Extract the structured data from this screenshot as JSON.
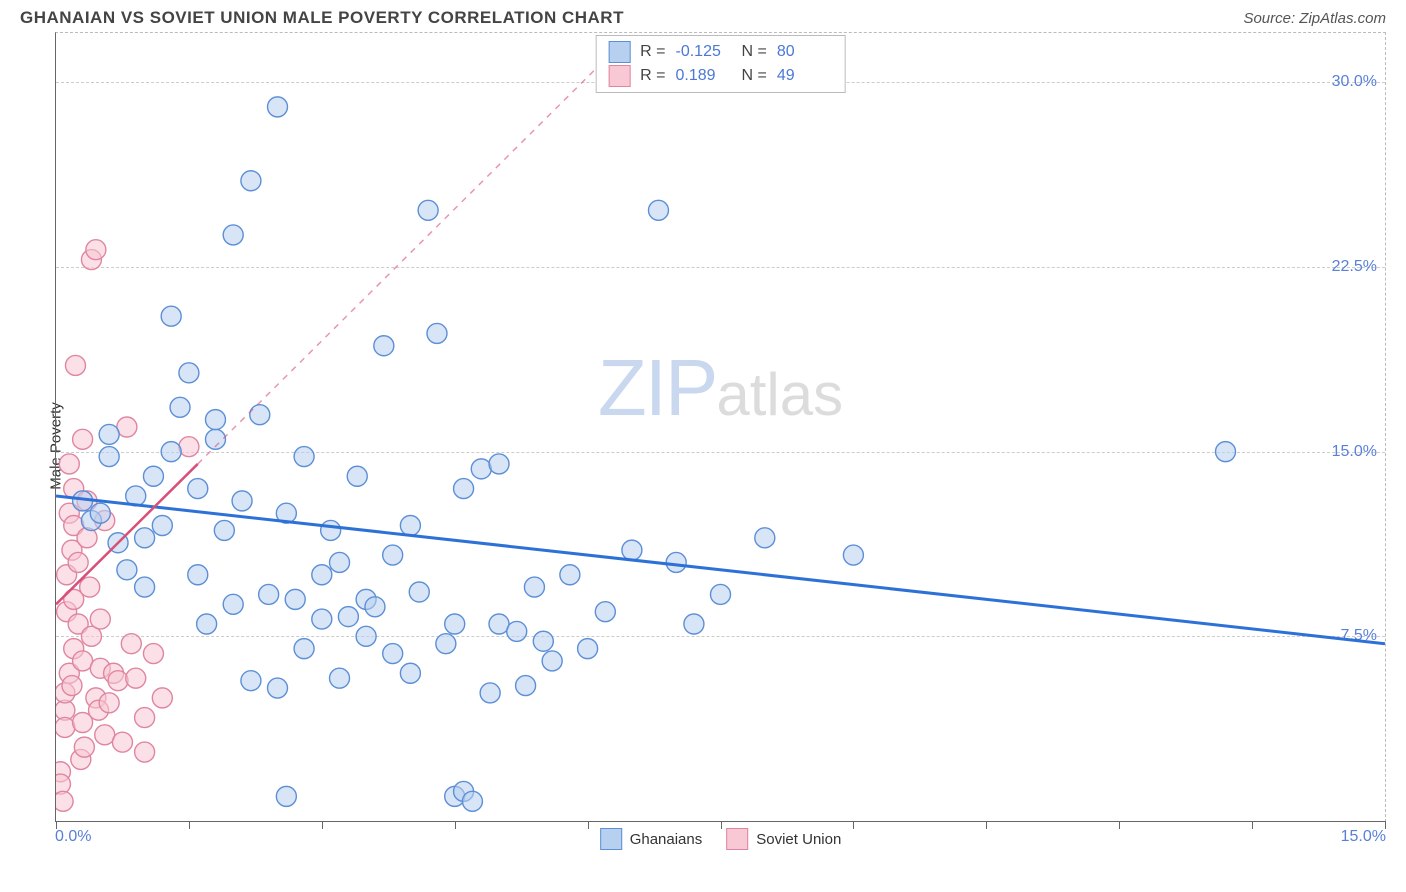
{
  "title": "GHANAIAN VS SOVIET UNION MALE POVERTY CORRELATION CHART",
  "source": "Source: ZipAtlas.com",
  "y_axis_label": "Male Poverty",
  "watermark": {
    "part1": "ZIP",
    "part2": "atlas"
  },
  "colors": {
    "blue_fill": "#b8d0f0",
    "blue_stroke": "#5c8fd6",
    "blue_line": "#2d71d8",
    "pink_fill": "#f8c8d4",
    "pink_stroke": "#e085a0",
    "pink_line": "#d85078",
    "grid": "#cccccc",
    "axis": "#666666",
    "tick_text": "#5880d8"
  },
  "chart": {
    "xlim": [
      0,
      15
    ],
    "ylim": [
      0,
      32
    ],
    "y_ticks": [
      7.5,
      15.0,
      22.5,
      30.0
    ],
    "y_tick_labels": [
      "7.5%",
      "15.0%",
      "22.5%",
      "30.0%"
    ],
    "x_ticks": [
      0,
      1.5,
      3,
      4.5,
      6,
      7.5,
      9,
      10.5,
      12,
      13.5,
      15
    ],
    "x_left_label": "0.0%",
    "x_right_label": "15.0%",
    "marker_radius": 10,
    "marker_opacity": 0.55
  },
  "top_legend": [
    {
      "swatch_fill": "#b8d0f0",
      "swatch_stroke": "#5c8fd6",
      "r_label": "R =",
      "r_value": "-0.125",
      "n_label": "N =",
      "n_value": "80"
    },
    {
      "swatch_fill": "#f8c8d4",
      "swatch_stroke": "#e085a0",
      "r_label": "R =",
      "r_value": " 0.189",
      "n_label": "N =",
      "n_value": "49"
    }
  ],
  "bottom_legend": [
    {
      "label": "Ghanaians",
      "fill": "#b8d0f0",
      "stroke": "#5c8fd6"
    },
    {
      "label": "Soviet Union",
      "fill": "#f8c8d4",
      "stroke": "#e085a0"
    }
  ],
  "series": {
    "ghanaians": {
      "color_fill": "#b8d0f0",
      "color_stroke": "#5c8fd6",
      "points": [
        [
          0.3,
          13.0
        ],
        [
          0.4,
          12.2
        ],
        [
          0.5,
          12.5
        ],
        [
          0.6,
          14.8
        ],
        [
          0.6,
          15.7
        ],
        [
          0.7,
          11.3
        ],
        [
          0.8,
          10.2
        ],
        [
          0.9,
          13.2
        ],
        [
          1.0,
          11.5
        ],
        [
          1.0,
          9.5
        ],
        [
          1.1,
          14.0
        ],
        [
          1.2,
          12.0
        ],
        [
          1.3,
          15.0
        ],
        [
          1.3,
          20.5
        ],
        [
          1.4,
          16.8
        ],
        [
          1.5,
          18.2
        ],
        [
          1.6,
          13.5
        ],
        [
          1.6,
          10.0
        ],
        [
          1.7,
          8.0
        ],
        [
          1.8,
          15.5
        ],
        [
          1.8,
          16.3
        ],
        [
          1.9,
          11.8
        ],
        [
          2.0,
          23.8
        ],
        [
          2.0,
          8.8
        ],
        [
          2.1,
          13.0
        ],
        [
          2.2,
          26.0
        ],
        [
          2.2,
          5.7
        ],
        [
          2.3,
          16.5
        ],
        [
          2.4,
          9.2
        ],
        [
          2.5,
          29.0
        ],
        [
          2.5,
          5.4
        ],
        [
          2.6,
          12.5
        ],
        [
          2.6,
          1.0
        ],
        [
          2.7,
          9.0
        ],
        [
          2.8,
          7.0
        ],
        [
          2.8,
          14.8
        ],
        [
          3.0,
          10.0
        ],
        [
          3.0,
          8.2
        ],
        [
          3.1,
          11.8
        ],
        [
          3.2,
          10.5
        ],
        [
          3.2,
          5.8
        ],
        [
          3.3,
          8.3
        ],
        [
          3.4,
          14.0
        ],
        [
          3.5,
          9.0
        ],
        [
          3.5,
          7.5
        ],
        [
          3.6,
          8.7
        ],
        [
          3.7,
          19.3
        ],
        [
          3.8,
          6.8
        ],
        [
          3.8,
          10.8
        ],
        [
          4.0,
          12.0
        ],
        [
          4.0,
          6.0
        ],
        [
          4.1,
          9.3
        ],
        [
          4.2,
          24.8
        ],
        [
          4.3,
          19.8
        ],
        [
          4.4,
          7.2
        ],
        [
          4.5,
          1.0
        ],
        [
          4.5,
          8.0
        ],
        [
          4.6,
          13.5
        ],
        [
          4.6,
          1.2
        ],
        [
          4.7,
          0.8
        ],
        [
          4.8,
          14.3
        ],
        [
          4.9,
          5.2
        ],
        [
          5.0,
          14.5
        ],
        [
          5.0,
          8.0
        ],
        [
          5.2,
          7.7
        ],
        [
          5.3,
          5.5
        ],
        [
          5.4,
          9.5
        ],
        [
          5.5,
          7.3
        ],
        [
          5.6,
          6.5
        ],
        [
          5.8,
          10.0
        ],
        [
          6.0,
          7.0
        ],
        [
          6.2,
          8.5
        ],
        [
          6.5,
          11.0
        ],
        [
          6.8,
          24.8
        ],
        [
          7.0,
          10.5
        ],
        [
          7.2,
          8.0
        ],
        [
          7.5,
          9.2
        ],
        [
          8.0,
          11.5
        ],
        [
          9.0,
          10.8
        ],
        [
          13.2,
          15.0
        ]
      ],
      "trend": {
        "x1": 0,
        "y1": 13.2,
        "x2": 15,
        "y2": 7.2
      }
    },
    "soviet_union": {
      "color_fill": "#f8c8d4",
      "color_stroke": "#e085a0",
      "points": [
        [
          0.05,
          2.0
        ],
        [
          0.05,
          1.5
        ],
        [
          0.08,
          0.8
        ],
        [
          0.1,
          4.5
        ],
        [
          0.1,
          5.2
        ],
        [
          0.1,
          3.8
        ],
        [
          0.12,
          10.0
        ],
        [
          0.12,
          8.5
        ],
        [
          0.15,
          6.0
        ],
        [
          0.15,
          12.5
        ],
        [
          0.15,
          14.5
        ],
        [
          0.18,
          11.0
        ],
        [
          0.18,
          5.5
        ],
        [
          0.2,
          7.0
        ],
        [
          0.2,
          9.0
        ],
        [
          0.2,
          12.0
        ],
        [
          0.2,
          13.5
        ],
        [
          0.22,
          18.5
        ],
        [
          0.25,
          10.5
        ],
        [
          0.25,
          8.0
        ],
        [
          0.28,
          2.5
        ],
        [
          0.3,
          6.5
        ],
        [
          0.3,
          15.5
        ],
        [
          0.3,
          4.0
        ],
        [
          0.32,
          3.0
        ],
        [
          0.35,
          11.5
        ],
        [
          0.35,
          13.0
        ],
        [
          0.38,
          9.5
        ],
        [
          0.4,
          22.8
        ],
        [
          0.4,
          7.5
        ],
        [
          0.45,
          23.2
        ],
        [
          0.45,
          5.0
        ],
        [
          0.48,
          4.5
        ],
        [
          0.5,
          6.2
        ],
        [
          0.5,
          8.2
        ],
        [
          0.55,
          3.5
        ],
        [
          0.55,
          12.2
        ],
        [
          0.6,
          4.8
        ],
        [
          0.65,
          6.0
        ],
        [
          0.7,
          5.7
        ],
        [
          0.75,
          3.2
        ],
        [
          0.8,
          16.0
        ],
        [
          0.85,
          7.2
        ],
        [
          0.9,
          5.8
        ],
        [
          1.0,
          4.2
        ],
        [
          1.0,
          2.8
        ],
        [
          1.1,
          6.8
        ],
        [
          1.2,
          5.0
        ],
        [
          1.5,
          15.2
        ]
      ],
      "trend_solid": {
        "x1": 0,
        "y1": 8.8,
        "x2": 1.6,
        "y2": 14.5
      },
      "trend_dashed": {
        "x1": 1.6,
        "y1": 14.5,
        "x2": 6.5,
        "y2": 32.0
      }
    }
  }
}
